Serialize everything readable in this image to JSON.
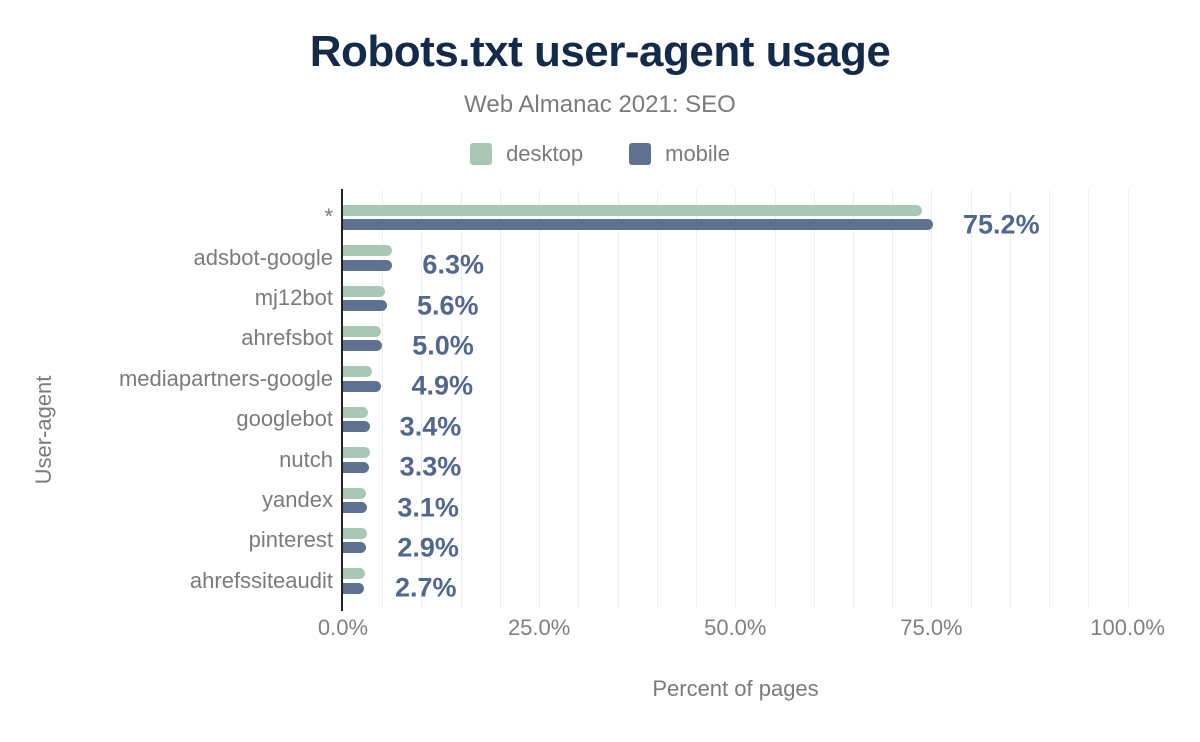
{
  "colors": {
    "background": "#ffffff",
    "title_text": "#142a4b",
    "muted_text": "#7b7b7b",
    "tick_text": "#808080",
    "value_label_text": "#51678f",
    "grid_line": "#ededed",
    "axis_line": "#222222",
    "desktop_series": "#a8c8b5",
    "mobile_series": "#5e7190"
  },
  "chart_data": {
    "type": "bar",
    "orientation": "horizontal",
    "title": "Robots.txt user-agent usage",
    "subtitle": "Web Almanac 2021: SEO",
    "xlabel": "Percent of pages",
    "ylabel": "User-agent",
    "categories": [
      "*",
      "adsbot-google",
      "mj12bot",
      "ahrefsbot",
      "mediapartners-google",
      "googlebot",
      "nutch",
      "yandex",
      "pinterest",
      "ahrefssiteaudit"
    ],
    "series": [
      {
        "name": "desktop",
        "color": "#a8c8b5",
        "values": [
          73.8,
          6.3,
          5.4,
          4.8,
          3.7,
          3.2,
          3.4,
          2.9,
          3.1,
          2.8
        ]
      },
      {
        "name": "mobile",
        "color": "#5e7190",
        "values": [
          75.2,
          6.3,
          5.6,
          5.0,
          4.9,
          3.4,
          3.3,
          3.1,
          2.9,
          2.7
        ]
      }
    ],
    "value_labels": [
      "75.2%",
      "6.3%",
      "5.6%",
      "5.0%",
      "4.9%",
      "3.4%",
      "3.3%",
      "3.1%",
      "2.9%",
      "2.7%"
    ],
    "x_ticks": [
      {
        "value": 0,
        "label": "0.0%"
      },
      {
        "value": 25,
        "label": "25.0%"
      },
      {
        "value": 50,
        "label": "50.0%"
      },
      {
        "value": 75,
        "label": "75.0%"
      },
      {
        "value": 100,
        "label": "100.0%"
      }
    ],
    "xlim": [
      0,
      100
    ],
    "grid": {
      "orientation": "vertical",
      "minor_step_percent": 5
    },
    "legend_position": "top"
  }
}
